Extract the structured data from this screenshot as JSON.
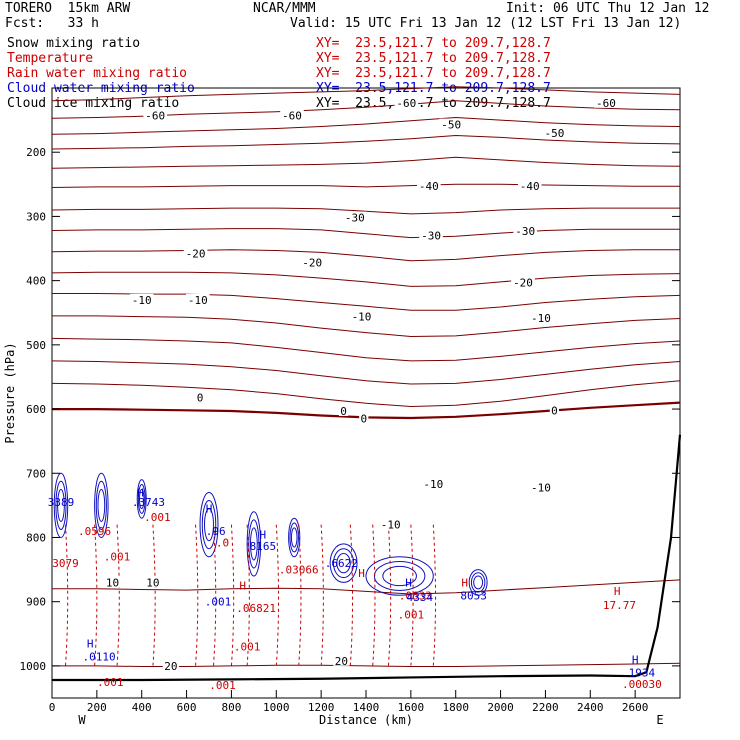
{
  "header": {
    "model": "TORERO  15km ARW",
    "center": "NCAR/MMM",
    "init": "Init: 06 UTC Thu 12 Jan 12",
    "fcst": "Fcst:   33 h",
    "valid": "Valid: 15 UTC Fri 13 Jan 12 (12 LST Fri 13 Jan 12)"
  },
  "legend": [
    {
      "label": "Snow mixing ratio",
      "xy": "XY=  23.5,121.7 to 209.7,128.7",
      "color": "#000000",
      "xy_color": "#cc0000"
    },
    {
      "label": "Temperature",
      "xy": "XY=  23.5,121.7 to 209.7,128.7",
      "color": "#cc0000",
      "xy_color": "#cc0000"
    },
    {
      "label": "Rain water mixing ratio",
      "xy": "XY=  23.5,121.7 to 209.7,128.7",
      "color": "#cc0000",
      "xy_color": "#cc0000"
    },
    {
      "label": "Cloud water mixing ratio",
      "xy": "XY=  23.5,121.7 to 209.7,128.7",
      "color": "#0000cc",
      "xy_color": "#0000cc"
    },
    {
      "label": "Cloud ice mixing ratio",
      "xy": "XY=  23.5,121.7 to 209.7,128.7",
      "color": "#000000",
      "xy_color": "#000000"
    }
  ],
  "chart_data": {
    "type": "line",
    "title": "Vertical cross section",
    "xlabel": "Distance (km)",
    "ylabel": "Pressure (hPa)",
    "xlim": [
      0,
      2800
    ],
    "ylim": [
      1050,
      100
    ],
    "x_ticks": [
      0,
      200,
      400,
      600,
      800,
      1000,
      1200,
      1400,
      1600,
      1800,
      2000,
      2200,
      2400,
      2600
    ],
    "y_ticks": [
      200,
      300,
      400,
      500,
      600,
      700,
      800,
      900,
      1000
    ],
    "x_end_labels": {
      "left": "W",
      "right": "E"
    },
    "temperature_isotherms": [
      {
        "level": -60,
        "label": "-60",
        "x": [
          0,
          200,
          400,
          600,
          800,
          1000,
          1200,
          1400,
          1600,
          1800,
          2000,
          2200,
          2400,
          2600,
          2800
        ],
        "y": [
          120,
          118,
          115,
          112,
          110,
          108,
          106,
          104,
          101,
          98,
          100,
          103,
          106,
          108,
          110
        ]
      },
      {
        "level": -60,
        "label": "-60",
        "x": [
          0,
          200,
          400,
          600,
          800,
          1000,
          1200,
          1400,
          1600,
          1800,
          2000,
          2200,
          2400,
          2600,
          2800
        ],
        "y": [
          147,
          146,
          144,
          141,
          139,
          137,
          134,
          130,
          125,
          120,
          124,
          128,
          131,
          133,
          134
        ]
      },
      {
        "level": -50,
        "label": "-50",
        "x": [
          0,
          200,
          400,
          600,
          800,
          1000,
          1200,
          1400,
          1600,
          1800,
          2000,
          2200,
          2400,
          2600,
          2800
        ],
        "y": [
          172,
          171,
          169,
          167,
          165,
          163,
          160,
          156,
          151,
          146,
          150,
          154,
          157,
          159,
          160
        ]
      },
      {
        "level": -50,
        "label": "-50",
        "x": [
          0,
          200,
          400,
          600,
          800,
          1000,
          1200,
          1400,
          1600,
          1800,
          2000,
          2200,
          2400,
          2600,
          2800
        ],
        "y": [
          195,
          194,
          193,
          191,
          190,
          188,
          186,
          183,
          179,
          174,
          177,
          181,
          184,
          186,
          187
        ]
      },
      {
        "level": -40,
        "label": "-40",
        "x": [
          0,
          200,
          400,
          600,
          800,
          1000,
          1200,
          1400,
          1600,
          1800,
          2000,
          2200,
          2400,
          2600,
          2800
        ],
        "y": [
          225,
          224,
          223,
          222,
          221,
          220,
          219,
          217,
          213,
          208,
          212,
          216,
          219,
          221,
          222
        ]
      },
      {
        "level": -40,
        "label": "-40",
        "x": [
          0,
          200,
          400,
          600,
          800,
          1000,
          1200,
          1400,
          1600,
          1800,
          2000,
          2200,
          2400,
          2600,
          2800
        ],
        "y": [
          255,
          254,
          254,
          253,
          252,
          252,
          252,
          254,
          252,
          250,
          250,
          251,
          252,
          253,
          253
        ]
      },
      {
        "level": -30,
        "label": "-30",
        "x": [
          0,
          200,
          400,
          600,
          800,
          1000,
          1200,
          1400,
          1600,
          1800,
          2000,
          2200,
          2400,
          2600,
          2800
        ],
        "y": [
          290,
          289,
          289,
          288,
          287,
          287,
          288,
          292,
          296,
          294,
          290,
          288,
          287,
          287,
          287
        ]
      },
      {
        "level": -30,
        "label": "-30",
        "x": [
          0,
          200,
          400,
          600,
          800,
          1000,
          1200,
          1400,
          1600,
          1800,
          2000,
          2200,
          2400,
          2600,
          2800
        ],
        "y": [
          322,
          321,
          321,
          320,
          319,
          319,
          321,
          327,
          333,
          331,
          326,
          322,
          320,
          320,
          320
        ]
      },
      {
        "level": -20,
        "label": "-20",
        "x": [
          0,
          200,
          400,
          600,
          800,
          1000,
          1200,
          1400,
          1600,
          1800,
          2000,
          2200,
          2400,
          2600,
          2800
        ],
        "y": [
          355,
          354,
          354,
          353,
          352,
          353,
          356,
          362,
          369,
          367,
          361,
          356,
          353,
          352,
          352
        ]
      },
      {
        "level": -20,
        "label": "-20",
        "x": [
          0,
          200,
          400,
          600,
          800,
          1000,
          1200,
          1400,
          1600,
          1800,
          2000,
          2200,
          2400,
          2600,
          2800
        ],
        "y": [
          388,
          387,
          387,
          387,
          388,
          391,
          396,
          402,
          409,
          408,
          402,
          396,
          392,
          390,
          389
        ]
      },
      {
        "level": -10,
        "label": "-10",
        "x": [
          0,
          200,
          400,
          600,
          800,
          1000,
          1200,
          1400,
          1600,
          1800,
          2000,
          2200,
          2400,
          2600,
          2800
        ],
        "y": [
          420,
          420,
          421,
          421,
          423,
          428,
          434,
          440,
          446,
          446,
          441,
          434,
          429,
          425,
          423
        ]
      },
      {
        "level": -10,
        "label": "-10",
        "x": [
          0,
          200,
          400,
          600,
          800,
          1000,
          1200,
          1400,
          1600,
          1800,
          2000,
          2200,
          2400,
          2600,
          2800
        ],
        "y": [
          455,
          455,
          456,
          457,
          460,
          466,
          474,
          481,
          487,
          486,
          480,
          473,
          467,
          462,
          459
        ]
      },
      {
        "level": -10,
        "label": "-10",
        "x": [
          0,
          200,
          400,
          600,
          800,
          1000,
          1200,
          1400,
          1600,
          1800,
          2000,
          2200,
          2400,
          2600,
          2800
        ],
        "y": [
          490,
          491,
          492,
          494,
          497,
          504,
          512,
          520,
          525,
          524,
          518,
          511,
          504,
          498,
          494
        ]
      },
      {
        "level": -10,
        "label": "-10",
        "x": [
          0,
          200,
          400,
          600,
          800,
          1000,
          1200,
          1400,
          1600,
          1800,
          2000,
          2200,
          2400,
          2600,
          2800
        ],
        "y": [
          525,
          526,
          528,
          530,
          534,
          540,
          548,
          556,
          561,
          560,
          554,
          546,
          538,
          531,
          526
        ]
      },
      {
        "level": 0,
        "label": "0",
        "x": [
          0,
          200,
          400,
          600,
          800,
          1000,
          1200,
          1400,
          1600,
          1800,
          2000,
          2200,
          2400,
          2600,
          2800
        ],
        "y": [
          560,
          561,
          563,
          566,
          570,
          576,
          584,
          591,
          596,
          594,
          588,
          579,
          570,
          562,
          556
        ]
      },
      {
        "level": 0,
        "label": "0",
        "x": [
          0,
          200,
          400,
          600,
          800,
          1000,
          1200,
          1400,
          1600,
          1800,
          2000,
          2200,
          2400,
          2600,
          2800
        ],
        "y": [
          600,
          600,
          601,
          602,
          603,
          606,
          610,
          613,
          614,
          612,
          608,
          603,
          598,
          594,
          590
        ],
        "bold": true
      },
      {
        "level": 10,
        "label": "10",
        "x": [
          0,
          200,
          400,
          600,
          800,
          1000,
          1200,
          1400,
          1600,
          1800,
          2000,
          2200,
          2400,
          2600,
          2800
        ],
        "y": [
          880,
          880,
          881,
          882,
          880,
          879,
          880,
          884,
          888,
          886,
          882,
          878,
          874,
          870,
          866
        ]
      },
      {
        "level": 20,
        "label": "20",
        "x": [
          0,
          200,
          400,
          600,
          800,
          1000,
          1200,
          1400,
          1600,
          1800,
          2000,
          2200,
          2400,
          2600,
          2800
        ],
        "y": [
          1000,
          1000,
          1001,
          1001,
          1000,
          999,
          999,
          1000,
          1001,
          1001,
          1000,
          999,
          998,
          997,
          996
        ]
      }
    ],
    "isotherm_labels": [
      {
        "text": "-60",
        "x": 1580,
        "y": 123
      },
      {
        "text": "-60",
        "x": 2470,
        "y": 123
      },
      {
        "text": "-60",
        "x": 460,
        "y": 143
      },
      {
        "text": "-60",
        "x": 1070,
        "y": 143
      },
      {
        "text": "-50",
        "x": 1780,
        "y": 157
      },
      {
        "text": "-50",
        "x": 2240,
        "y": 170
      },
      {
        "text": "-40",
        "x": 1680,
        "y": 253
      },
      {
        "text": "-40",
        "x": 2130,
        "y": 253
      },
      {
        "text": "-30",
        "x": 1350,
        "y": 302
      },
      {
        "text": "-30",
        "x": 1690,
        "y": 330
      },
      {
        "text": "-30",
        "x": 2110,
        "y": 323
      },
      {
        "text": "-20",
        "x": 640,
        "y": 358
      },
      {
        "text": "-20",
        "x": 1160,
        "y": 372
      },
      {
        "text": "-20",
        "x": 2100,
        "y": 403
      },
      {
        "text": "-10",
        "x": 400,
        "y": 430
      },
      {
        "text": "-10",
        "x": 650,
        "y": 430
      },
      {
        "text": "-10",
        "x": 1380,
        "y": 456
      },
      {
        "text": "-10",
        "x": 2180,
        "y": 458
      },
      {
        "text": "0",
        "x": 660,
        "y": 582
      },
      {
        "text": "0",
        "x": 1300,
        "y": 603
      },
      {
        "text": "0",
        "x": 1390,
        "y": 615
      },
      {
        "text": "0",
        "x": 2240,
        "y": 602
      },
      {
        "text": "-10",
        "x": 2180,
        "y": 722
      },
      {
        "text": "-10",
        "x": 1700,
        "y": 717
      },
      {
        "text": "-10",
        "x": 1510,
        "y": 780
      },
      {
        "text": "10",
        "x": 450,
        "y": 870
      },
      {
        "text": "10",
        "x": 270,
        "y": 870
      },
      {
        "text": "20",
        "x": 530,
        "y": 1000
      },
      {
        "text": "20",
        "x": 1290,
        "y": 992
      }
    ],
    "point_annotations": [
      {
        "text": "3389",
        "x": 40,
        "y": 745,
        "color": "#0000cc"
      },
      {
        "text": ".3743",
        "x": 430,
        "y": 745,
        "color": "#0000cc"
      },
      {
        "text": "H",
        "x": 395,
        "y": 730,
        "color": "#0000cc"
      },
      {
        "text": ".0596",
        "x": 190,
        "y": 790,
        "color": "#cc0000"
      },
      {
        "text": ".001",
        "x": 470,
        "y": 768,
        "color": "#cc0000"
      },
      {
        "text": "H",
        "x": 700,
        "y": 755,
        "color": "#0000cc"
      },
      {
        "text": ".96",
        "x": 730,
        "y": 790,
        "color": "#0000cc"
      },
      {
        "text": ".0",
        "x": 760,
        "y": 808,
        "color": "#cc0000"
      },
      {
        "text": "8165",
        "x": 940,
        "y": 813,
        "color": "#0000cc"
      },
      {
        "text": "H",
        "x": 940,
        "y": 795,
        "color": "#0000cc"
      },
      {
        "text": "3079",
        "x": 60,
        "y": 840,
        "color": "#cc0000"
      },
      {
        "text": ".001",
        "x": 290,
        "y": 830,
        "color": "#cc0000"
      },
      {
        "text": ".03066",
        "x": 1100,
        "y": 850,
        "color": "#cc0000"
      },
      {
        "text": ".6622",
        "x": 1290,
        "y": 840,
        "color": "#0000cc"
      },
      {
        "text": "H",
        "x": 1380,
        "y": 855,
        "color": "#cc0000"
      },
      {
        "text": ".0633",
        "x": 1620,
        "y": 890,
        "color": "#cc0000"
      },
      {
        "text": "4334",
        "x": 1640,
        "y": 893,
        "color": "#0000cc"
      },
      {
        "text": "H",
        "x": 1590,
        "y": 870,
        "color": "#0000cc"
      },
      {
        "text": "H",
        "x": 1840,
        "y": 870,
        "color": "#cc0000"
      },
      {
        "text": "8053",
        "x": 1880,
        "y": 890,
        "color": "#0000cc"
      },
      {
        "text": ".001",
        "x": 1600,
        "y": 920,
        "color": "#cc0000"
      },
      {
        "text": "H",
        "x": 850,
        "y": 875,
        "color": "#cc0000"
      },
      {
        "text": ".06821",
        "x": 910,
        "y": 910,
        "color": "#cc0000"
      },
      {
        "text": ".001",
        "x": 740,
        "y": 900,
        "color": "#0000cc"
      },
      {
        "text": "H",
        "x": 170,
        "y": 965,
        "color": "#0000cc"
      },
      {
        "text": ".0110",
        "x": 210,
        "y": 985,
        "color": "#0000cc"
      },
      {
        "text": ".001",
        "x": 870,
        "y": 970,
        "color": "#cc0000"
      },
      {
        "text": ".001",
        "x": 260,
        "y": 1025,
        "color": "#cc0000"
      },
      {
        "text": ".001",
        "x": 760,
        "y": 1030,
        "color": "#cc0000"
      },
      {
        "text": "H",
        "x": 2520,
        "y": 883,
        "color": "#cc0000"
      },
      {
        "text": "17.77",
        "x": 2530,
        "y": 905,
        "color": "#cc0000"
      },
      {
        "text": "H",
        "x": 2600,
        "y": 990,
        "color": "#0000cc"
      },
      {
        "text": "1934",
        "x": 2630,
        "y": 1010,
        "color": "#0000cc"
      },
      {
        "text": ".00030",
        "x": 2630,
        "y": 1028,
        "color": "#cc0000"
      }
    ],
    "ground_surface": {
      "x": [
        0,
        400,
        800,
        1200,
        1600,
        2000,
        2400,
        2600,
        2650,
        2700,
        2760,
        2800
      ],
      "y": [
        1022,
        1022,
        1021,
        1020,
        1018,
        1016,
        1015,
        1016,
        1010,
        940,
        800,
        640
      ]
    }
  }
}
